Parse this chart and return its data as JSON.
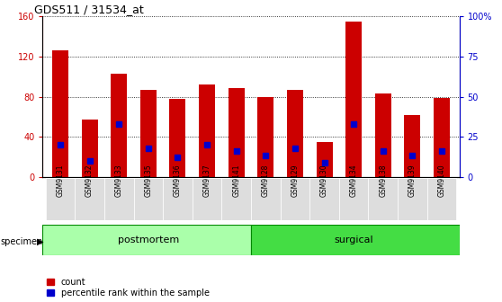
{
  "title": "GDS511 / 31534_at",
  "categories": [
    "GSM9131",
    "GSM9132",
    "GSM9133",
    "GSM9135",
    "GSM9136",
    "GSM9137",
    "GSM9141",
    "GSM9128",
    "GSM9129",
    "GSM9130",
    "GSM9134",
    "GSM9138",
    "GSM9139",
    "GSM9140"
  ],
  "count_values": [
    126,
    57,
    103,
    87,
    78,
    92,
    89,
    80,
    87,
    35,
    155,
    83,
    62,
    79
  ],
  "percentile_values": [
    20,
    10,
    33,
    18,
    12,
    20,
    16,
    13,
    18,
    9,
    33,
    16,
    13,
    16
  ],
  "bar_color": "#cc0000",
  "percentile_color": "#0000cc",
  "ylim_left": [
    0,
    160
  ],
  "ylim_right": [
    0,
    100
  ],
  "yticks_left": [
    0,
    40,
    80,
    120,
    160
  ],
  "ytick_labels_left": [
    "0",
    "40",
    "80",
    "120",
    "160"
  ],
  "yticks_right": [
    0,
    25,
    50,
    75,
    100
  ],
  "ytick_labels_right": [
    "0",
    "25",
    "50",
    "75",
    "100%"
  ],
  "groups": [
    {
      "label": "postmortem",
      "start": 0,
      "end": 7,
      "color": "#aaffaa"
    },
    {
      "label": "surgical",
      "start": 7,
      "end": 14,
      "color": "#44dd44"
    }
  ],
  "specimen_label": "specimen",
  "legend_count_label": "count",
  "legend_percentile_label": "percentile rank within the sample",
  "bar_width": 0.55,
  "background_color": "#ffffff"
}
